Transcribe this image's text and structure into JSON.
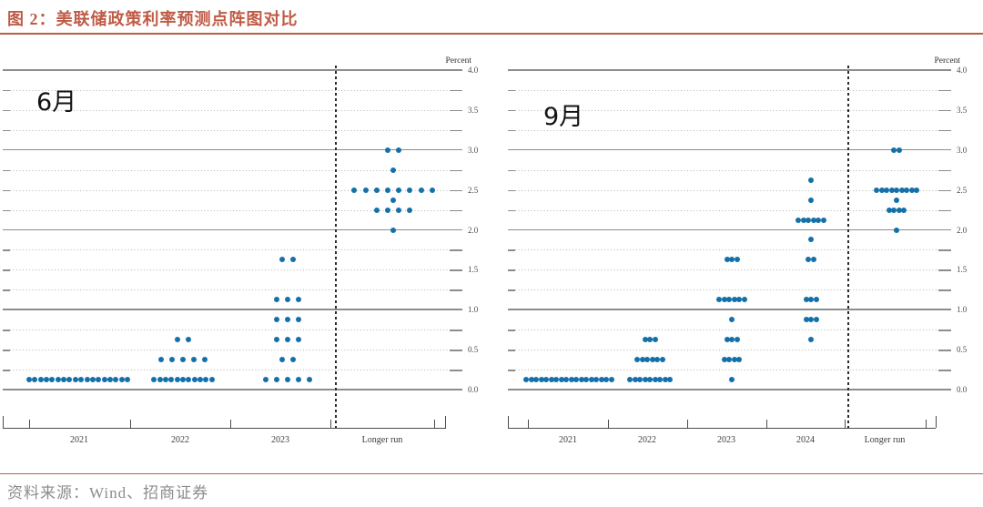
{
  "page": {
    "title": "图 2：美联储政策利率预测点阵图对比",
    "source": "资料来源：Wind、招商证券",
    "accent_color": "#bf5b45",
    "dot_color": "#1470a8"
  },
  "chart_data": [
    {
      "type": "scatter",
      "subtype": "fomc-dot-plot",
      "title": "6月",
      "ylabel": "Percent",
      "ylim": [
        0.0,
        4.0
      ],
      "ytick_step": 0.25,
      "ytick_label_step": 0.5,
      "ytick_labels": [
        "4.0",
        "3.5",
        "3.0",
        "2.5",
        "2.0",
        "1.5",
        "1.0",
        "0.5",
        "0.0"
      ],
      "grid": "dotted horizontal every 0.25, solid at whole percents",
      "legend": "none",
      "categories": [
        "2021",
        "2022",
        "2023",
        "Longer run"
      ],
      "dots": [
        {
          "category": "2021",
          "rate": 0.125,
          "count": 18
        },
        {
          "category": "2022",
          "rate": 0.125,
          "count": 11
        },
        {
          "category": "2022",
          "rate": 0.375,
          "count": 5
        },
        {
          "category": "2022",
          "rate": 0.625,
          "count": 2
        },
        {
          "category": "2023",
          "rate": 0.125,
          "count": 5
        },
        {
          "category": "2023",
          "rate": 0.375,
          "count": 2
        },
        {
          "category": "2023",
          "rate": 0.625,
          "count": 3
        },
        {
          "category": "2023",
          "rate": 0.875,
          "count": 3
        },
        {
          "category": "2023",
          "rate": 1.125,
          "count": 3
        },
        {
          "category": "2023",
          "rate": 1.625,
          "count": 2
        },
        {
          "category": "Longer run",
          "rate": 2.0,
          "count": 1
        },
        {
          "category": "Longer run",
          "rate": 2.25,
          "count": 4
        },
        {
          "category": "Longer run",
          "rate": 2.375,
          "count": 1
        },
        {
          "category": "Longer run",
          "rate": 2.5,
          "count": 8
        },
        {
          "category": "Longer run",
          "rate": 2.75,
          "count": 1
        },
        {
          "category": "Longer run",
          "rate": 3.0,
          "count": 2
        }
      ]
    },
    {
      "type": "scatter",
      "subtype": "fomc-dot-plot",
      "title": "9月",
      "ylabel": "Percent",
      "ylim": [
        0.0,
        4.0
      ],
      "ytick_step": 0.25,
      "ytick_label_step": 0.5,
      "ytick_labels": [
        "4.0",
        "3.5",
        "3.0",
        "2.5",
        "2.0",
        "1.5",
        "1.0",
        "0.5",
        "0.0"
      ],
      "grid": "dotted horizontal every 0.25, solid at whole percents",
      "legend": "none",
      "categories": [
        "2021",
        "2022",
        "2023",
        "2024",
        "Longer run"
      ],
      "dots": [
        {
          "category": "2021",
          "rate": 0.125,
          "count": 18
        },
        {
          "category": "2022",
          "rate": 0.125,
          "count": 9
        },
        {
          "category": "2022",
          "rate": 0.375,
          "count": 6
        },
        {
          "category": "2022",
          "rate": 0.625,
          "count": 3
        },
        {
          "category": "2023",
          "rate": 0.125,
          "count": 1
        },
        {
          "category": "2023",
          "rate": 0.375,
          "count": 4
        },
        {
          "category": "2023",
          "rate": 0.625,
          "count": 3
        },
        {
          "category": "2023",
          "rate": 0.875,
          "count": 1
        },
        {
          "category": "2023",
          "rate": 1.125,
          "count": 6
        },
        {
          "category": "2023",
          "rate": 1.625,
          "count": 3
        },
        {
          "category": "2024",
          "rate": 0.625,
          "count": 1
        },
        {
          "category": "2024",
          "rate": 0.875,
          "count": 3
        },
        {
          "category": "2024",
          "rate": 1.125,
          "count": 3
        },
        {
          "category": "2024",
          "rate": 1.625,
          "count": 2
        },
        {
          "category": "2024",
          "rate": 1.875,
          "count": 1
        },
        {
          "category": "2024",
          "rate": 2.125,
          "count": 6
        },
        {
          "category": "2024",
          "rate": 2.375,
          "count": 1
        },
        {
          "category": "2024",
          "rate": 2.625,
          "count": 1
        },
        {
          "category": "Longer run",
          "rate": 2.0,
          "count": 1
        },
        {
          "category": "Longer run",
          "rate": 2.25,
          "count": 4
        },
        {
          "category": "Longer run",
          "rate": 2.375,
          "count": 1
        },
        {
          "category": "Longer run",
          "rate": 2.5,
          "count": 9
        },
        {
          "category": "Longer run",
          "rate": 3.0,
          "count": 2
        }
      ]
    }
  ]
}
